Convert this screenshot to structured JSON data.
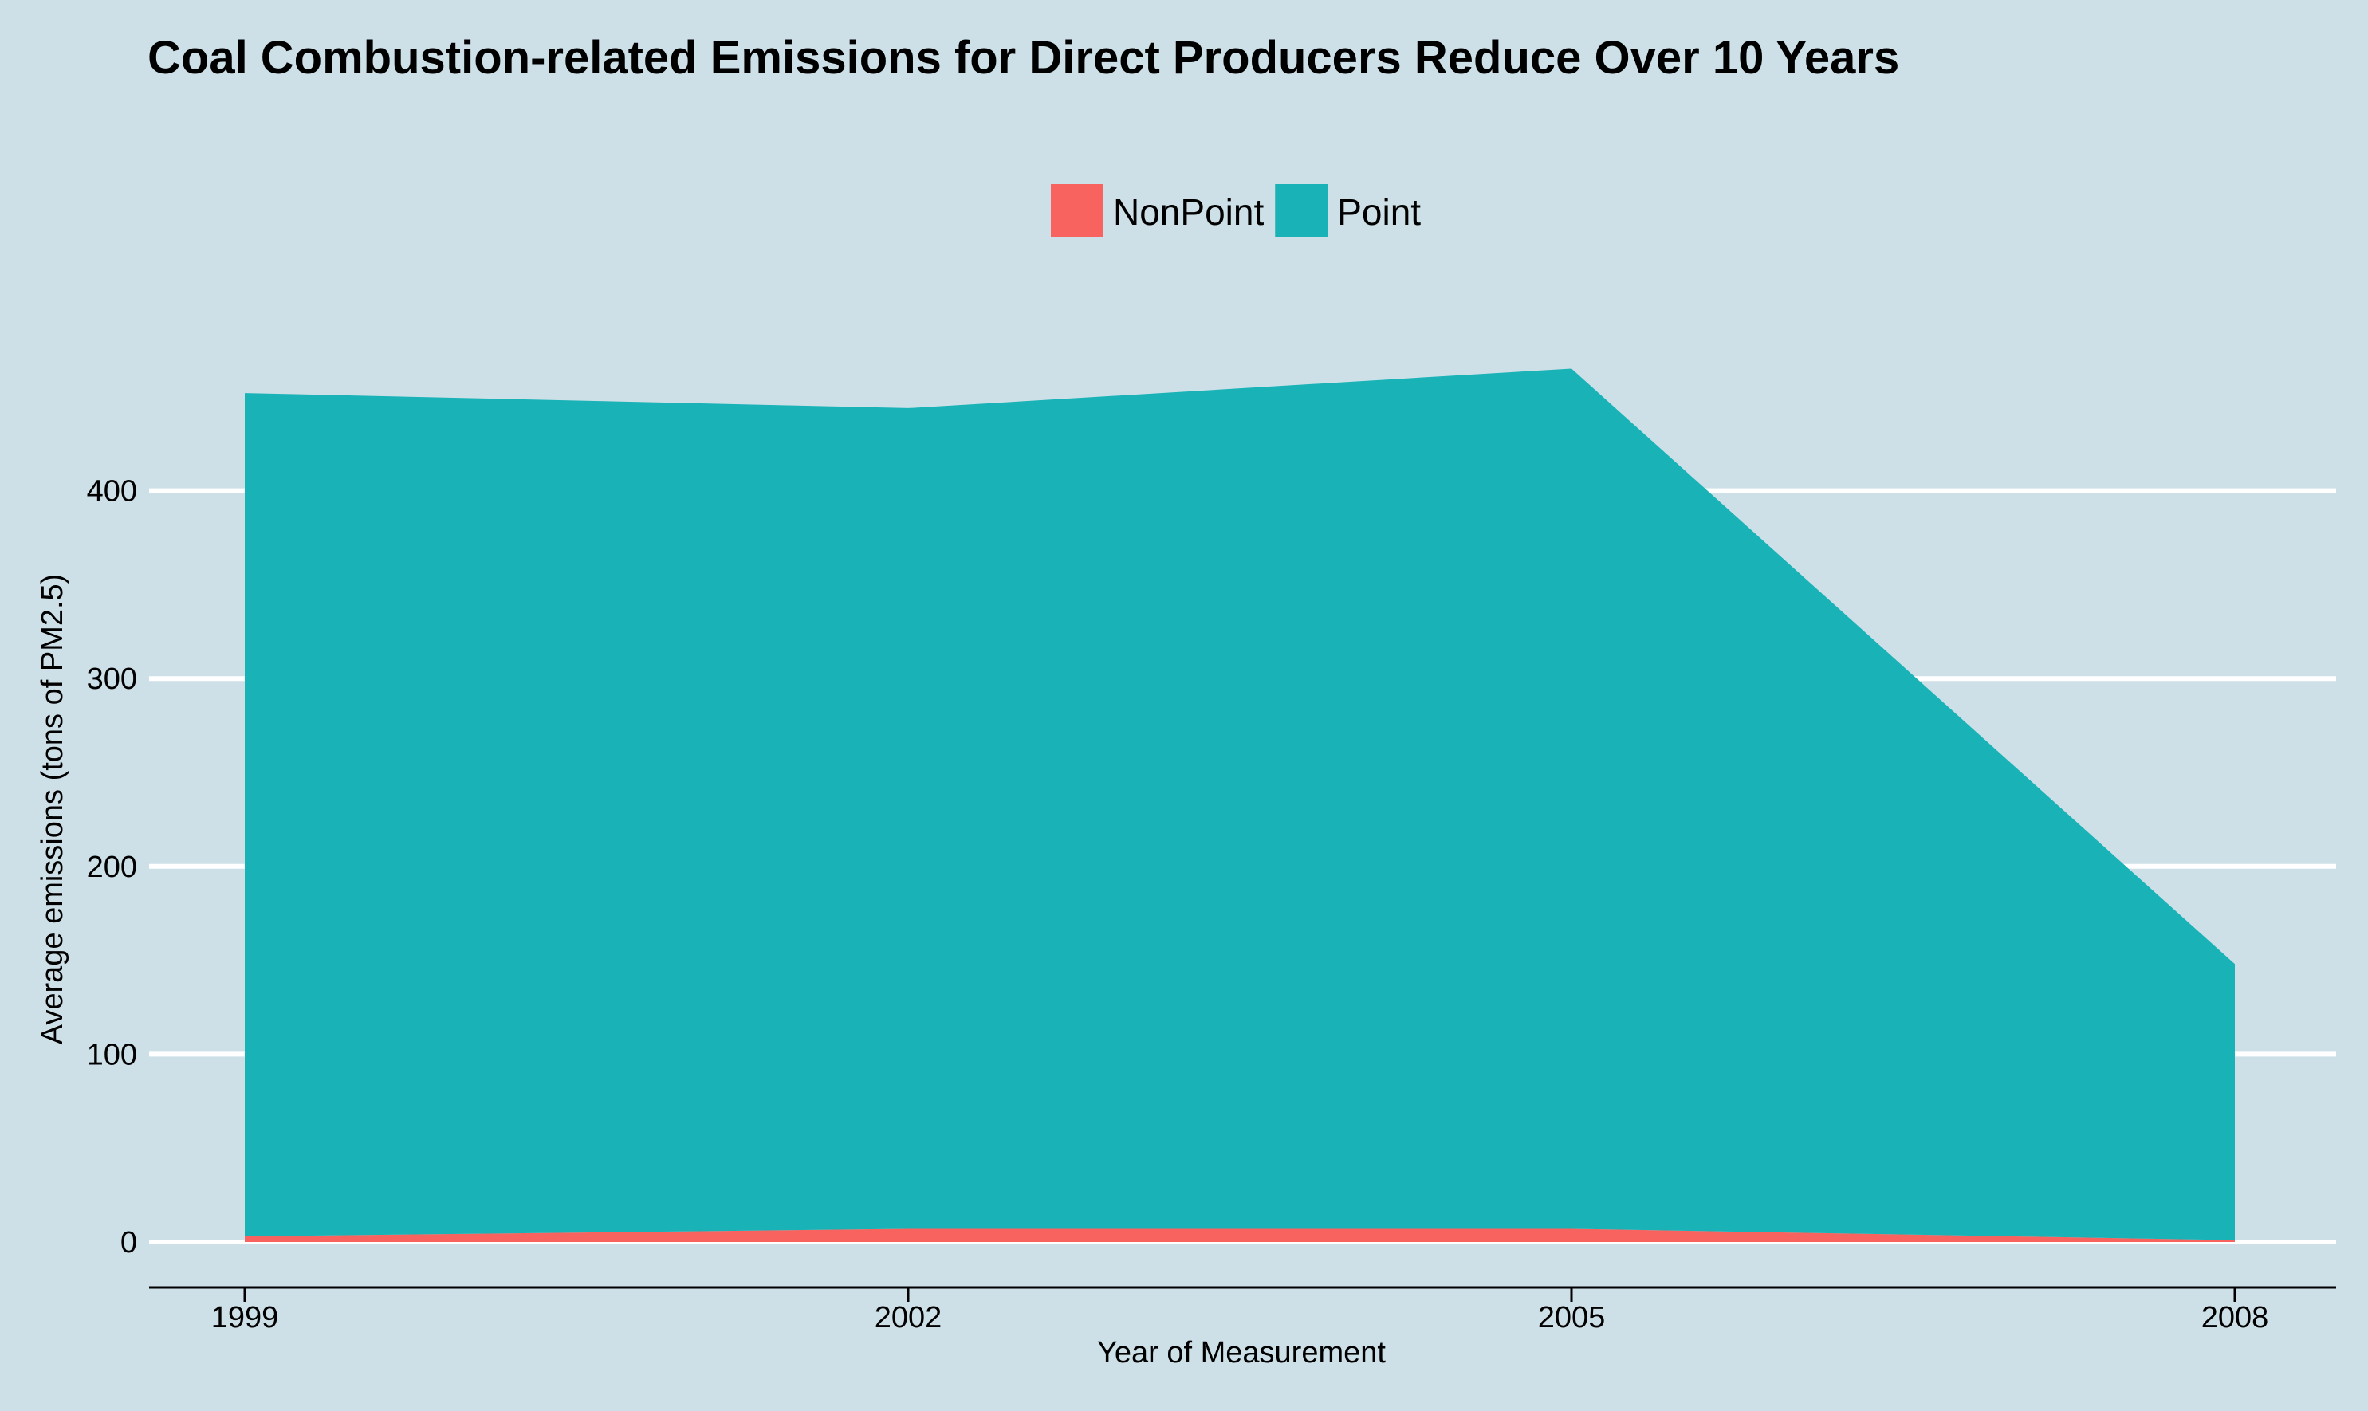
{
  "chart_data": {
    "type": "area",
    "stacked": true,
    "title": "Coal Combustion-related Emissions for Direct Producers Reduce Over 10 Years",
    "xlabel": "Year of Measurement",
    "ylabel": "Average emissions (tons of PM2.5)",
    "x": [
      1999,
      2002,
      2005,
      2008
    ],
    "xticks": [
      "1999",
      "2002",
      "2005",
      "2008"
    ],
    "yticks": [
      "0",
      "100",
      "200",
      "300",
      "400"
    ],
    "ylim": [
      0,
      500
    ],
    "grid": "horizontal",
    "legend_position": "top-center",
    "series": [
      {
        "name": "NonPoint",
        "color": "#f8635f",
        "values": [
          3,
          7,
          7,
          1
        ]
      },
      {
        "name": "Point",
        "color": "#19b2b7",
        "values": [
          449,
          437,
          458,
          147
        ]
      }
    ]
  }
}
